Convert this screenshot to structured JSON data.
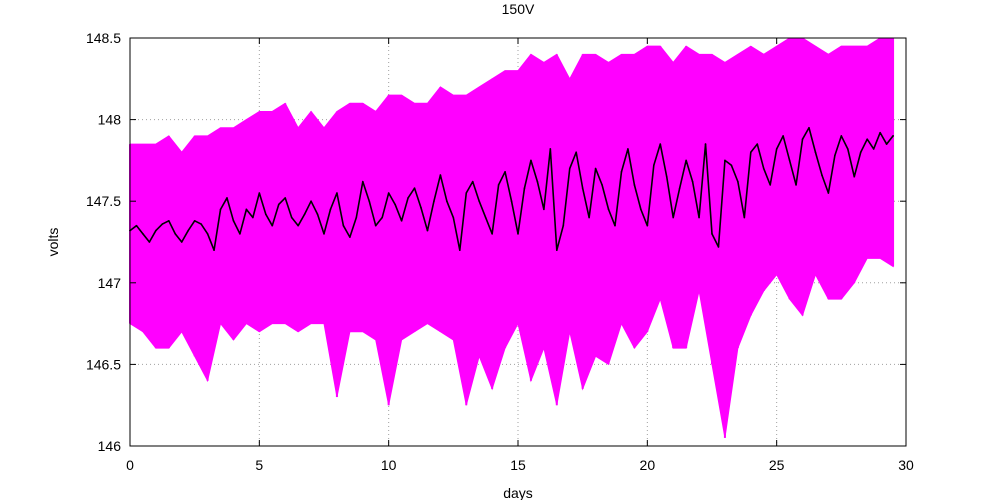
{
  "chart_data": {
    "type": "line",
    "title": "150V",
    "xlabel": "days",
    "ylabel": "volts",
    "xlim": [
      0,
      30
    ],
    "ylim": [
      146,
      148.5
    ],
    "x_ticks": [
      0,
      5,
      10,
      15,
      20,
      25,
      30
    ],
    "x_tick_labels": [
      "0",
      "5",
      "10",
      "15",
      "20",
      "25",
      "30"
    ],
    "y_ticks": [
      146,
      146.5,
      147,
      147.5,
      148,
      148.5
    ],
    "y_tick_labels": [
      "146",
      "146.5",
      "147",
      "147.5",
      "148",
      "148.5"
    ],
    "grid": true,
    "legend": "none",
    "series": [
      {
        "color": "#ff00ff",
        "style": "envelope",
        "x": [
          0,
          0.5,
          1,
          1.5,
          2,
          2.5,
          3,
          3.5,
          4,
          4.5,
          5,
          5.5,
          6,
          6.5,
          7,
          7.5,
          8,
          8.5,
          9,
          9.5,
          10,
          10.5,
          11,
          11.5,
          12,
          12.5,
          13,
          13.5,
          14,
          14.5,
          15,
          15.5,
          16,
          16.5,
          17,
          17.5,
          18,
          18.5,
          19,
          19.5,
          20,
          20.5,
          21,
          21.5,
          22,
          22.5,
          23,
          23.5,
          24,
          24.5,
          25,
          25.5,
          26,
          26.5,
          27,
          27.5,
          28,
          28.5,
          29,
          29.5
        ],
        "upper": [
          147.85,
          147.85,
          147.85,
          147.9,
          147.8,
          147.9,
          147.9,
          147.95,
          147.95,
          148.0,
          148.05,
          148.05,
          148.1,
          147.95,
          148.05,
          147.95,
          148.05,
          148.1,
          148.1,
          148.05,
          148.15,
          148.15,
          148.1,
          148.1,
          148.2,
          148.15,
          148.15,
          148.2,
          148.25,
          148.3,
          148.3,
          148.4,
          148.35,
          148.4,
          148.25,
          148.4,
          148.4,
          148.35,
          148.4,
          148.4,
          148.45,
          148.45,
          148.35,
          148.45,
          148.4,
          148.4,
          148.35,
          148.4,
          148.45,
          148.4,
          148.45,
          148.5,
          148.5,
          148.45,
          148.4,
          148.45,
          148.45,
          148.45,
          148.5,
          148.5
        ],
        "lower": [
          146.75,
          146.7,
          146.6,
          146.6,
          146.7,
          146.55,
          146.4,
          146.75,
          146.65,
          146.75,
          146.7,
          146.75,
          146.75,
          146.7,
          146.75,
          146.75,
          146.3,
          146.7,
          146.7,
          146.65,
          146.25,
          146.65,
          146.7,
          146.75,
          146.7,
          146.65,
          146.25,
          146.55,
          146.35,
          146.6,
          146.75,
          146.4,
          146.6,
          146.25,
          146.7,
          146.35,
          146.55,
          146.5,
          146.75,
          146.6,
          146.7,
          146.9,
          146.6,
          146.6,
          146.95,
          146.5,
          146.05,
          146.6,
          146.8,
          146.95,
          147.05,
          146.9,
          146.8,
          147.05,
          146.9,
          146.9,
          147.0,
          147.15,
          147.15,
          147.1
        ]
      },
      {
        "color": "#000000",
        "style": "line",
        "x": [
          0,
          0.25,
          0.5,
          0.75,
          1,
          1.25,
          1.5,
          1.75,
          2,
          2.25,
          2.5,
          2.75,
          3,
          3.25,
          3.5,
          3.75,
          4,
          4.25,
          4.5,
          4.75,
          5,
          5.25,
          5.5,
          5.75,
          6,
          6.25,
          6.5,
          6.75,
          7,
          7.25,
          7.5,
          7.75,
          8,
          8.25,
          8.5,
          8.75,
          9,
          9.25,
          9.5,
          9.75,
          10,
          10.25,
          10.5,
          10.75,
          11,
          11.25,
          11.5,
          11.75,
          12,
          12.25,
          12.5,
          12.75,
          13,
          13.25,
          13.5,
          13.75,
          14,
          14.25,
          14.5,
          14.75,
          15,
          15.25,
          15.5,
          15.75,
          16,
          16.25,
          16.5,
          16.75,
          17,
          17.25,
          17.5,
          17.75,
          18,
          18.25,
          18.5,
          18.75,
          19,
          19.25,
          19.5,
          19.75,
          20,
          20.25,
          20.5,
          20.75,
          21,
          21.25,
          21.5,
          21.75,
          22,
          22.25,
          22.5,
          22.75,
          23,
          23.25,
          23.5,
          23.75,
          24,
          24.25,
          24.5,
          24.75,
          25,
          25.25,
          25.5,
          25.75,
          26,
          26.25,
          26.5,
          26.75,
          27,
          27.25,
          27.5,
          27.75,
          28,
          28.25,
          28.5,
          28.75,
          29,
          29.25,
          29.5
        ],
        "values": [
          147.32,
          147.35,
          147.3,
          147.25,
          147.32,
          147.36,
          147.38,
          147.3,
          147.25,
          147.32,
          147.38,
          147.36,
          147.3,
          147.2,
          147.45,
          147.52,
          147.38,
          147.3,
          147.45,
          147.4,
          147.55,
          147.42,
          147.35,
          147.48,
          147.52,
          147.4,
          147.35,
          147.42,
          147.5,
          147.42,
          147.3,
          147.45,
          147.55,
          147.35,
          147.28,
          147.4,
          147.62,
          147.5,
          147.35,
          147.4,
          147.55,
          147.48,
          147.38,
          147.52,
          147.58,
          147.46,
          147.32,
          147.5,
          147.66,
          147.5,
          147.4,
          147.2,
          147.55,
          147.62,
          147.5,
          147.4,
          147.3,
          147.6,
          147.68,
          147.5,
          147.3,
          147.58,
          147.75,
          147.62,
          147.45,
          147.82,
          147.2,
          147.35,
          147.7,
          147.8,
          147.58,
          147.4,
          147.7,
          147.6,
          147.45,
          147.35,
          147.68,
          147.82,
          147.6,
          147.45,
          147.35,
          147.72,
          147.85,
          147.65,
          147.4,
          147.58,
          147.75,
          147.62,
          147.4,
          147.85,
          147.3,
          147.22,
          147.75,
          147.72,
          147.62,
          147.4,
          147.8,
          147.85,
          147.7,
          147.6,
          147.82,
          147.9,
          147.75,
          147.6,
          147.88,
          147.95,
          147.8,
          147.66,
          147.55,
          147.78,
          147.9,
          147.82,
          147.65,
          147.8,
          147.88,
          147.82,
          147.92,
          147.85,
          147.9
        ]
      }
    ]
  }
}
